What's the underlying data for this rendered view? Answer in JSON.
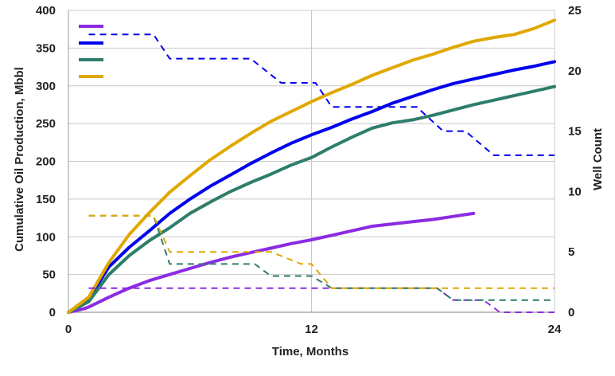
{
  "chart_data": {
    "type": "line",
    "xlabel": "Time, Months",
    "ylabel": "Cumulative Oil Production, Mbbl",
    "y2label": "Well Count",
    "xlim": [
      0,
      24
    ],
    "ylim": [
      0,
      400
    ],
    "y2lim": [
      0,
      25
    ],
    "xticks": [
      "0",
      "12",
      "24"
    ],
    "yticks": [
      "0",
      "50",
      "100",
      "150",
      "200",
      "250",
      "300",
      "350",
      "400"
    ],
    "y2ticks": [
      "0",
      "5",
      "10",
      "15",
      "20",
      "25"
    ],
    "grid": "vertical and horizontal lines at x=12 and major y ticks",
    "legend_position": "top-left",
    "legend_labels": [
      "",
      "",
      "",
      ""
    ],
    "series": [
      {
        "color": "#8b2be2",
        "axis": "left",
        "style": "solid",
        "x": [
          0,
          0.8,
          1,
          2,
          3,
          4,
          5,
          6,
          7,
          8,
          9,
          10,
          11,
          12,
          13,
          14,
          15,
          16,
          17,
          18,
          19,
          20
        ],
        "y": [
          0,
          5,
          7,
          20,
          32,
          42,
          50,
          58,
          66,
          73,
          79,
          85,
          91,
          96,
          102,
          108,
          114,
          117,
          120,
          123,
          127,
          131
        ]
      },
      {
        "color": "#0000ee",
        "axis": "left",
        "style": "solid",
        "x": [
          0,
          1,
          2,
          3,
          4,
          5,
          6,
          7,
          8,
          9,
          10,
          11,
          12,
          13,
          14,
          15,
          16,
          17,
          18,
          19,
          20,
          21,
          22,
          23,
          24
        ],
        "y": [
          0,
          18,
          60,
          86,
          108,
          131,
          150,
          167,
          182,
          197,
          211,
          224,
          235,
          245,
          256,
          266,
          277,
          286,
          295,
          303,
          309,
          315,
          321,
          326,
          332
        ]
      },
      {
        "color": "#2e7d6b",
        "axis": "left",
        "style": "solid",
        "x": [
          0,
          1,
          2,
          3,
          4,
          5,
          6,
          7,
          8,
          9,
          10,
          11,
          12,
          13,
          14,
          15,
          16,
          17,
          18,
          19,
          20,
          21,
          22,
          23,
          24
        ],
        "y": [
          0,
          14,
          50,
          75,
          95,
          112,
          131,
          146,
          160,
          172,
          183,
          195,
          205,
          219,
          232,
          244,
          251,
          255,
          261,
          268,
          275,
          281,
          287,
          293,
          299
        ]
      },
      {
        "color": "#e0a800",
        "axis": "left",
        "style": "solid",
        "x": [
          0,
          1,
          2,
          3,
          4,
          5,
          6,
          7,
          8,
          9,
          10,
          11,
          12,
          13,
          14,
          15,
          16,
          17,
          18,
          19,
          20,
          21,
          22,
          23,
          24
        ],
        "y": [
          0,
          20,
          66,
          103,
          132,
          159,
          181,
          202,
          220,
          237,
          253,
          266,
          279,
          291,
          302,
          314,
          324,
          334,
          342,
          351,
          359,
          364,
          368,
          376,
          387
        ]
      },
      {
        "color": "#8b2be2",
        "axis": "right",
        "style": "dashed",
        "x": [
          1,
          18.2,
          19,
          20.5,
          21.3,
          24
        ],
        "y": [
          2,
          2,
          1,
          1,
          0,
          0
        ]
      },
      {
        "color": "#0000ee",
        "axis": "right",
        "style": "dashed",
        "x": [
          1,
          4.2,
          5,
          9,
          10.5,
          12.2,
          13,
          17.2,
          18.5,
          19.6,
          21,
          24
        ],
        "y": [
          23,
          23,
          21,
          21,
          19,
          19,
          17,
          17,
          15,
          15,
          13,
          13
        ]
      },
      {
        "color": "#2e7d6b",
        "axis": "right",
        "style": "dashed",
        "x": [
          1,
          4.2,
          5,
          9.2,
          10,
          12,
          13,
          18.2,
          19,
          20.5,
          21,
          24
        ],
        "y": [
          8,
          8,
          4,
          4,
          3,
          3,
          2,
          2,
          1,
          1,
          1,
          1
        ]
      },
      {
        "color": "#e0a800",
        "axis": "right",
        "style": "dashed",
        "x": [
          1,
          4.2,
          5,
          10,
          11.5,
          12,
          13,
          24
        ],
        "y": [
          8,
          8,
          5,
          5,
          4,
          4,
          2,
          2
        ]
      }
    ]
  }
}
